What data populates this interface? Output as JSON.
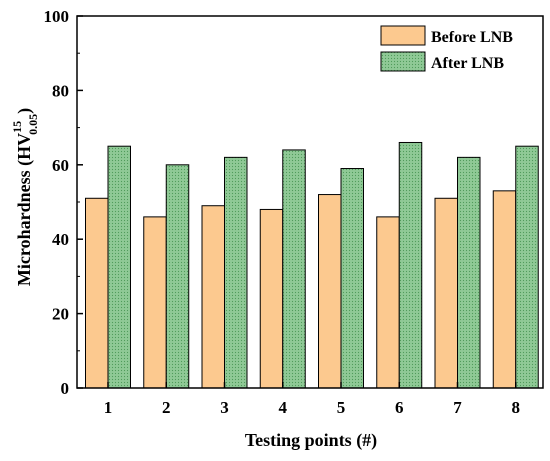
{
  "chart_data": {
    "type": "bar",
    "title": "",
    "xlabel": "Testing points (#)",
    "ylabel": {
      "main": "Microhardness (HV",
      "superscript": "15",
      "subscript": "0.05",
      "close": ")"
    },
    "categories": [
      "1",
      "2",
      "3",
      "4",
      "5",
      "6",
      "7",
      "8"
    ],
    "series": [
      {
        "name": "Before LNB",
        "values": [
          51,
          46,
          49,
          48,
          52,
          46,
          51,
          53
        ],
        "color": "#fcc98f",
        "pattern": "solid"
      },
      {
        "name": "After LNB",
        "values": [
          65,
          60,
          62,
          64,
          59,
          66,
          62,
          65
        ],
        "color": "#8fc996",
        "pattern": "dotted"
      }
    ],
    "ylim": [
      0,
      100
    ],
    "yticks": [
      0,
      20,
      40,
      60,
      80,
      100
    ],
    "grid": false,
    "legend": "top-right"
  }
}
